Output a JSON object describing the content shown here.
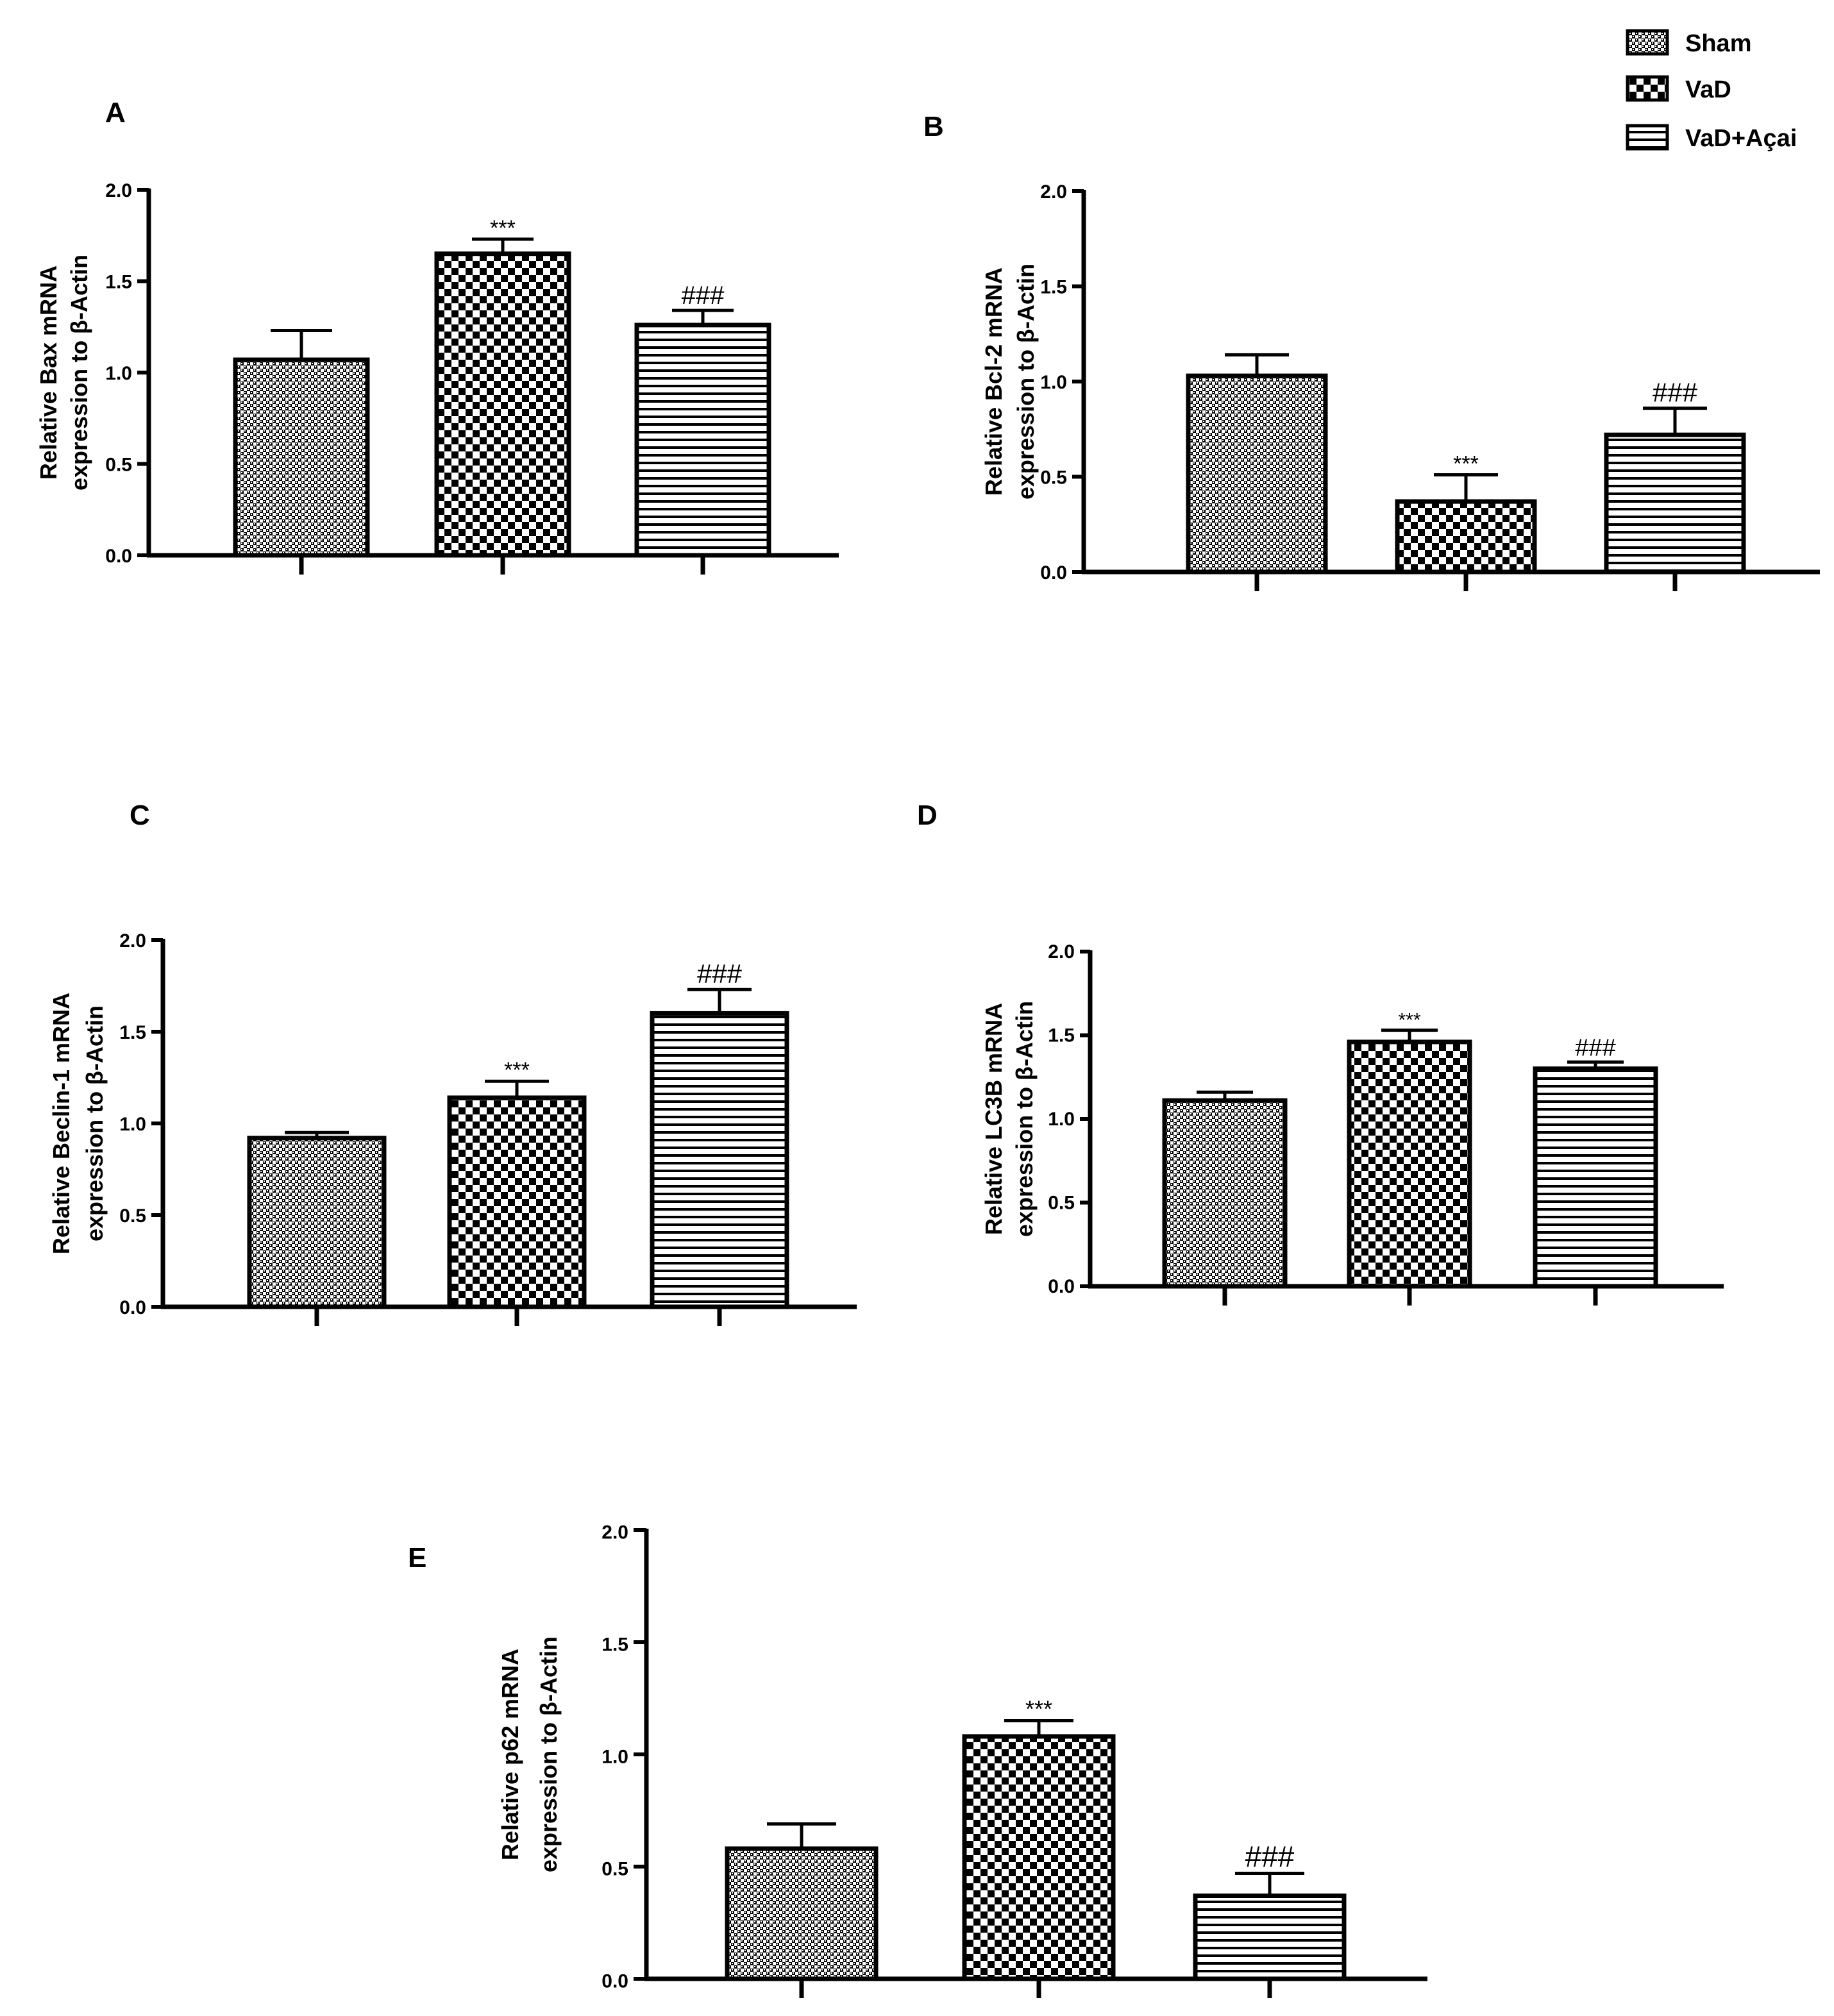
{
  "legend": {
    "items": [
      {
        "label": "Sham",
        "pattern": "pat-sham"
      },
      {
        "label": "VaD",
        "pattern": "pat-vad"
      },
      {
        "label": "VaD+Açai",
        "pattern": "pat-acai"
      }
    ]
  },
  "colors": {
    "ink": "#000000",
    "background": "#ffffff"
  },
  "chart_data": [
    {
      "panel": "A",
      "type": "bar",
      "categories": [
        "Sham",
        "VaD",
        "VaD+Açai"
      ],
      "values": [
        1.07,
        1.65,
        1.26
      ],
      "errors": [
        0.16,
        0.08,
        0.08
      ],
      "significance": [
        "",
        "***",
        "###"
      ],
      "ylabel_line1": "Relative Bax mRNA",
      "ylabel_line2": "expression to β-Actin",
      "ylim": [
        0,
        2.0
      ],
      "yticks": [
        "0.0",
        "0.5",
        "1.0",
        "1.5",
        "2.0"
      ]
    },
    {
      "panel": "B",
      "type": "bar",
      "categories": [
        "Sham",
        "VaD",
        "VaD+Açai"
      ],
      "values": [
        1.03,
        0.37,
        0.72
      ],
      "errors": [
        0.11,
        0.14,
        0.14
      ],
      "significance": [
        "",
        "***",
        "###"
      ],
      "ylabel_line1": "Relative Bcl-2 mRNA",
      "ylabel_line2": "expression to β-Actin",
      "ylim": [
        0,
        2.0
      ],
      "yticks": [
        "0.0",
        "0.5",
        "1.0",
        "1.5",
        "2.0"
      ]
    },
    {
      "panel": "C",
      "type": "bar",
      "categories": [
        "Sham",
        "VaD",
        "VaD+Açai"
      ],
      "values": [
        0.92,
        1.14,
        1.6
      ],
      "errors": [
        0.03,
        0.09,
        0.13
      ],
      "significance": [
        "",
        "***",
        "###"
      ],
      "ylabel_line1": "Relative Beclin-1 mRNA",
      "ylabel_line2": "expression to β-Actin",
      "ylim": [
        0,
        2.0
      ],
      "yticks": [
        "0.0",
        "0.5",
        "1.0",
        "1.5",
        "2.0"
      ]
    },
    {
      "panel": "D",
      "type": "bar",
      "categories": [
        "Sham",
        "VaD",
        "VaD+Açai"
      ],
      "values": [
        1.11,
        1.46,
        1.3
      ],
      "errors": [
        0.05,
        0.07,
        0.04
      ],
      "significance": [
        "",
        "***",
        "###"
      ],
      "ylabel_line1": "Relative LC3B mRNA",
      "ylabel_line2": "expression to β-Actin",
      "ylim": [
        0,
        2.0
      ],
      "yticks": [
        "0.0",
        "0.5",
        "1.0",
        "1.5",
        "2.0"
      ]
    },
    {
      "panel": "E",
      "type": "bar",
      "categories": [
        "Sham",
        "VaD",
        "VaD+Açai"
      ],
      "values": [
        0.58,
        1.08,
        0.37
      ],
      "errors": [
        0.11,
        0.07,
        0.1
      ],
      "significance": [
        "",
        "***",
        "###"
      ],
      "ylabel_line1": "Relative p62 mRNA",
      "ylabel_line2": "expression to β-Actin",
      "ylim": [
        0,
        2.0
      ],
      "yticks": [
        "0.0",
        "0.5",
        "1.0",
        "1.5",
        "2.0"
      ]
    }
  ]
}
